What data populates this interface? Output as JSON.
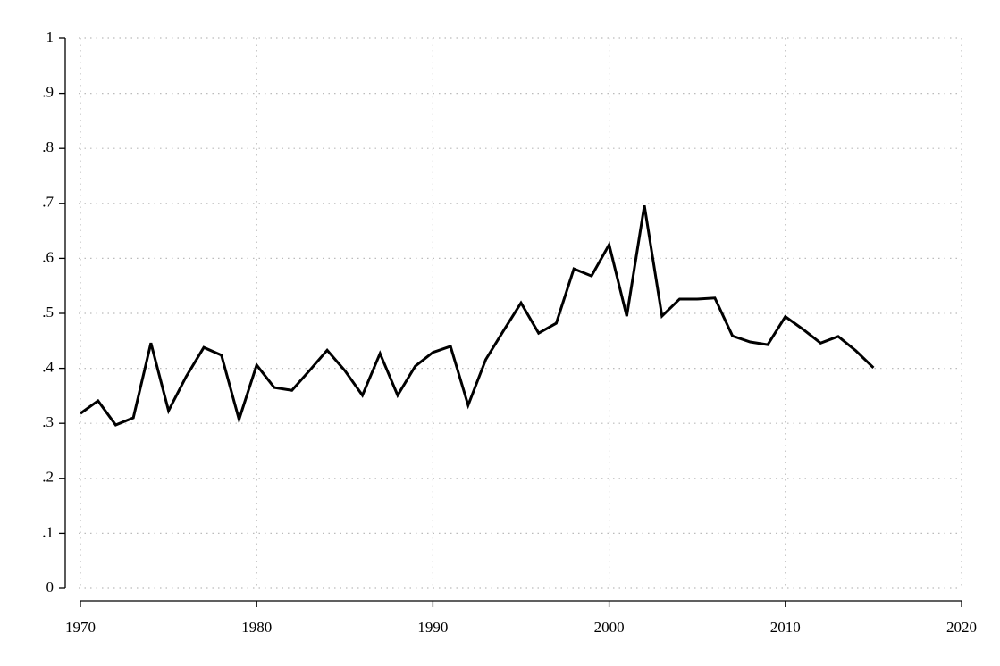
{
  "chart_data": {
    "type": "line",
    "x": [
      1970,
      1971,
      1972,
      1973,
      1974,
      1975,
      1976,
      1977,
      1978,
      1979,
      1980,
      1981,
      1982,
      1983,
      1984,
      1985,
      1986,
      1987,
      1988,
      1989,
      1990,
      1991,
      1992,
      1993,
      1994,
      1995,
      1996,
      1997,
      1998,
      1999,
      2000,
      2001,
      2002,
      2003,
      2004,
      2005,
      2006,
      2007,
      2008,
      2009,
      2010,
      2011,
      2012,
      2013,
      2014,
      2015
    ],
    "values": [
      0.318,
      0.341,
      0.297,
      0.31,
      0.446,
      0.323,
      0.385,
      0.438,
      0.424,
      0.307,
      0.406,
      0.365,
      0.36,
      0.396,
      0.433,
      0.396,
      0.351,
      0.427,
      0.351,
      0.404,
      0.429,
      0.44,
      0.333,
      0.416,
      0.468,
      0.519,
      0.464,
      0.482,
      0.581,
      0.568,
      0.625,
      0.495,
      0.696,
      0.495,
      0.526,
      0.526,
      0.528,
      0.459,
      0.448,
      0.443,
      0.494,
      0.471,
      0.446,
      0.458,
      0.432,
      0.401
    ],
    "color": "#000000",
    "xlim": [
      1970,
      2020
    ],
    "xticks": [
      1970,
      1980,
      1990,
      2000,
      2010,
      2020
    ],
    "ylim": [
      0,
      1
    ],
    "yticks": [
      0,
      {
        "value": 0.1,
        "label": ".1"
      },
      {
        "value": 0.2,
        "label": ".2"
      },
      {
        "value": 0.3,
        "label": ".3"
      },
      {
        "value": 0.4,
        "label": ".4"
      },
      {
        "value": 0.5,
        "label": ".5"
      },
      {
        "value": 0.6,
        "label": ".6"
      },
      {
        "value": 0.7,
        "label": ".7"
      },
      {
        "value": 0.8,
        "label": ".8"
      },
      {
        "value": 0.9,
        "label": ".9"
      },
      1
    ],
    "grid": true
  }
}
